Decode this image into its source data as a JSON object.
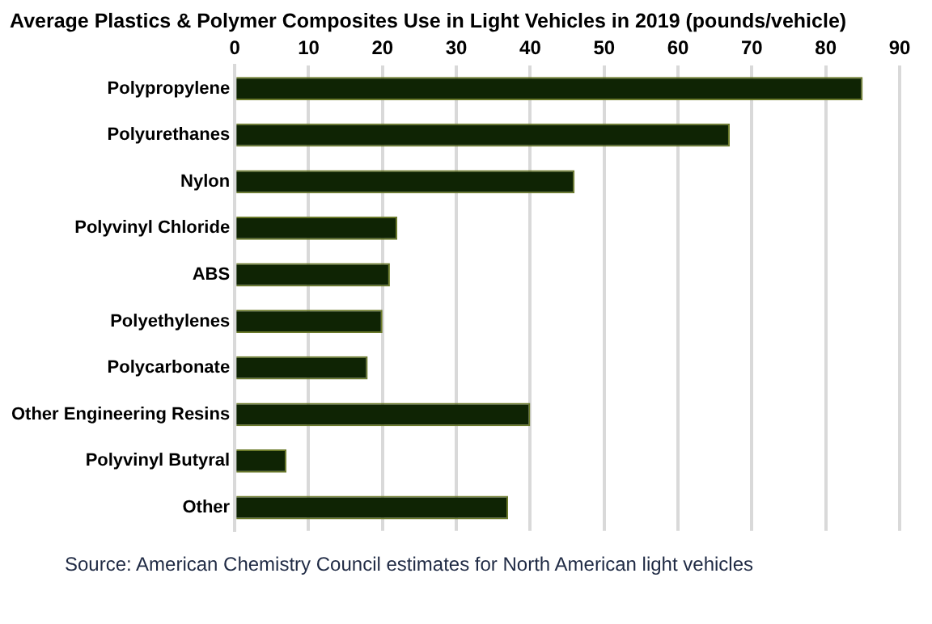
{
  "chart_data": {
    "type": "bar",
    "orientation": "horizontal",
    "title": "Average Plastics & Polymer Composites Use in Light Vehicles in 2019 (pounds/vehicle)",
    "categories": [
      "Polypropylene",
      "Polyurethanes",
      "Nylon",
      "Polyvinyl Chloride",
      "ABS",
      "Polyethylenes",
      "Polycarbonate",
      "Other Engineering Resins",
      "Polyvinyl Butyral",
      "Other"
    ],
    "values": [
      85,
      67,
      46,
      22,
      21,
      20,
      18,
      40,
      7,
      37
    ],
    "color": "#0f2404",
    "xlim": [
      0,
      90
    ],
    "xticks": [
      0,
      10,
      20,
      30,
      40,
      50,
      60,
      70,
      80,
      90
    ],
    "grid": "x",
    "legend": false,
    "annotations": [
      "Source: American Chemistry Council estimates for North American light vehicles"
    ]
  }
}
